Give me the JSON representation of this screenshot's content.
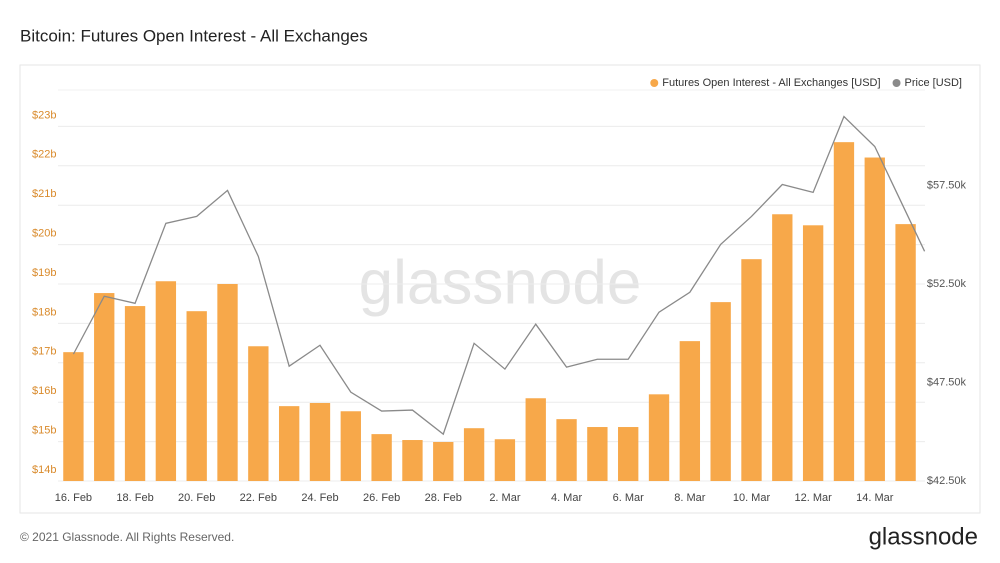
{
  "chart_data": {
    "type": "bar",
    "title": "Bitcoin: Futures Open Interest - All Exchanges",
    "watermark": "glassnode",
    "footer": "© 2021 Glassnode. All Rights Reserved.",
    "logo": "glassnode",
    "categories": [
      "16. Feb",
      null,
      "18. Feb",
      null,
      "20. Feb",
      null,
      "22. Feb",
      null,
      "24. Feb",
      null,
      "26. Feb",
      null,
      "28. Feb",
      null,
      "2. Mar",
      null,
      "4. Mar",
      null,
      "6. Mar",
      null,
      "8. Mar",
      null,
      "10. Mar",
      null,
      "12. Mar",
      null,
      "14. Mar",
      null
    ],
    "series": [
      {
        "name": "Futures Open Interest - All Exchanges [USD]",
        "color": "#f7a84a",
        "type": "bar",
        "values": [
          17.27,
          18.77,
          18.44,
          19.07,
          18.31,
          19.0,
          17.42,
          15.9,
          15.98,
          15.77,
          15.19,
          15.04,
          14.99,
          15.34,
          15.06,
          16.1,
          15.57,
          15.37,
          15.37,
          16.2,
          17.55,
          18.54,
          19.63,
          20.77,
          20.49,
          22.6,
          22.21,
          20.52
        ]
      },
      {
        "name": "Price [USD]",
        "color": "#8a8a8a",
        "type": "line",
        "axis": "y2",
        "values": [
          48.94,
          51.88,
          51.52,
          55.58,
          55.93,
          57.25,
          53.9,
          48.33,
          49.39,
          47.01,
          46.05,
          46.1,
          44.88,
          49.49,
          48.18,
          50.46,
          48.28,
          48.68,
          48.68,
          51.07,
          52.08,
          54.51,
          55.93,
          57.55,
          57.15,
          61.0,
          59.48,
          54.16
        ]
      }
    ],
    "ylim": [
      14,
      24
    ],
    "yticks": [
      {
        "value": 14,
        "label": "$14b"
      },
      {
        "value": 15,
        "label": "$15b"
      },
      {
        "value": 16,
        "label": "$16b"
      },
      {
        "value": 17,
        "label": "$17b"
      },
      {
        "value": 18,
        "label": "$18b"
      },
      {
        "value": 19,
        "label": "$19b"
      },
      {
        "value": 20,
        "label": "$20b"
      },
      {
        "value": 21,
        "label": "$21b"
      },
      {
        "value": 22,
        "label": "$22b"
      },
      {
        "value": 23,
        "label": "$23b"
      }
    ],
    "y2lim": [
      42.5,
      62.5
    ],
    "y2ticks": [
      {
        "value": 42.5,
        "label": "$42.50k"
      },
      {
        "value": 47.5,
        "label": "$47.50k"
      },
      {
        "value": 52.5,
        "label": "$52.50k"
      },
      {
        "value": 57.5,
        "label": "$57.50k"
      }
    ],
    "grid": true,
    "legend": "top-right"
  }
}
